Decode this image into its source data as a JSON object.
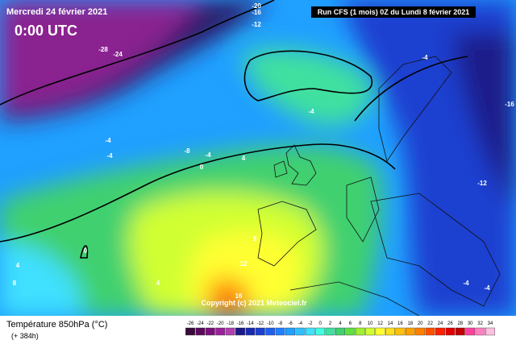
{
  "header": {
    "date": "Mercredi 24 février 2021",
    "time": "0:00 UTC",
    "run": "Run CFS (1 mois) 0Z du Lundi 8 février 2021"
  },
  "copyright": "Copyright (c) 2021 Meteociel.fr",
  "footer": {
    "title": "Température 850hPa (°C)",
    "lead": "(+ 384h)"
  },
  "colorbar": {
    "labels": [
      -26,
      -24,
      -22,
      -20,
      -18,
      -16,
      -14,
      -12,
      -10,
      -8,
      -6,
      -4,
      -2,
      0,
      2,
      4,
      6,
      8,
      10,
      12,
      14,
      16,
      18,
      20,
      22,
      24,
      26,
      28,
      30,
      32,
      34
    ],
    "colors": [
      "#3a0a3a",
      "#5a0a5a",
      "#7a107a",
      "#9a209a",
      "#b040b0",
      "#1a1a8a",
      "#1a2ab0",
      "#1a40d0",
      "#2060f0",
      "#2080ff",
      "#20a0ff",
      "#30c0ff",
      "#40e0ff",
      "#40ffe0",
      "#40e0a0",
      "#40d070",
      "#60e040",
      "#a0f030",
      "#d0ff30",
      "#ffff30",
      "#ffe020",
      "#ffc010",
      "#ffa000",
      "#ff8000",
      "#ff5000",
      "#ff2000",
      "#e00000",
      "#c00000",
      "#ff40a0",
      "#ff80c0",
      "#ffc0e0"
    ]
  },
  "contour_labels": [
    -28,
    -24,
    -20,
    -16,
    -12,
    -4,
    -16,
    -4,
    -4,
    -8,
    -4,
    0,
    4,
    -4,
    -12,
    8,
    12,
    4,
    4,
    8,
    0,
    -4,
    -4,
    16
  ]
}
